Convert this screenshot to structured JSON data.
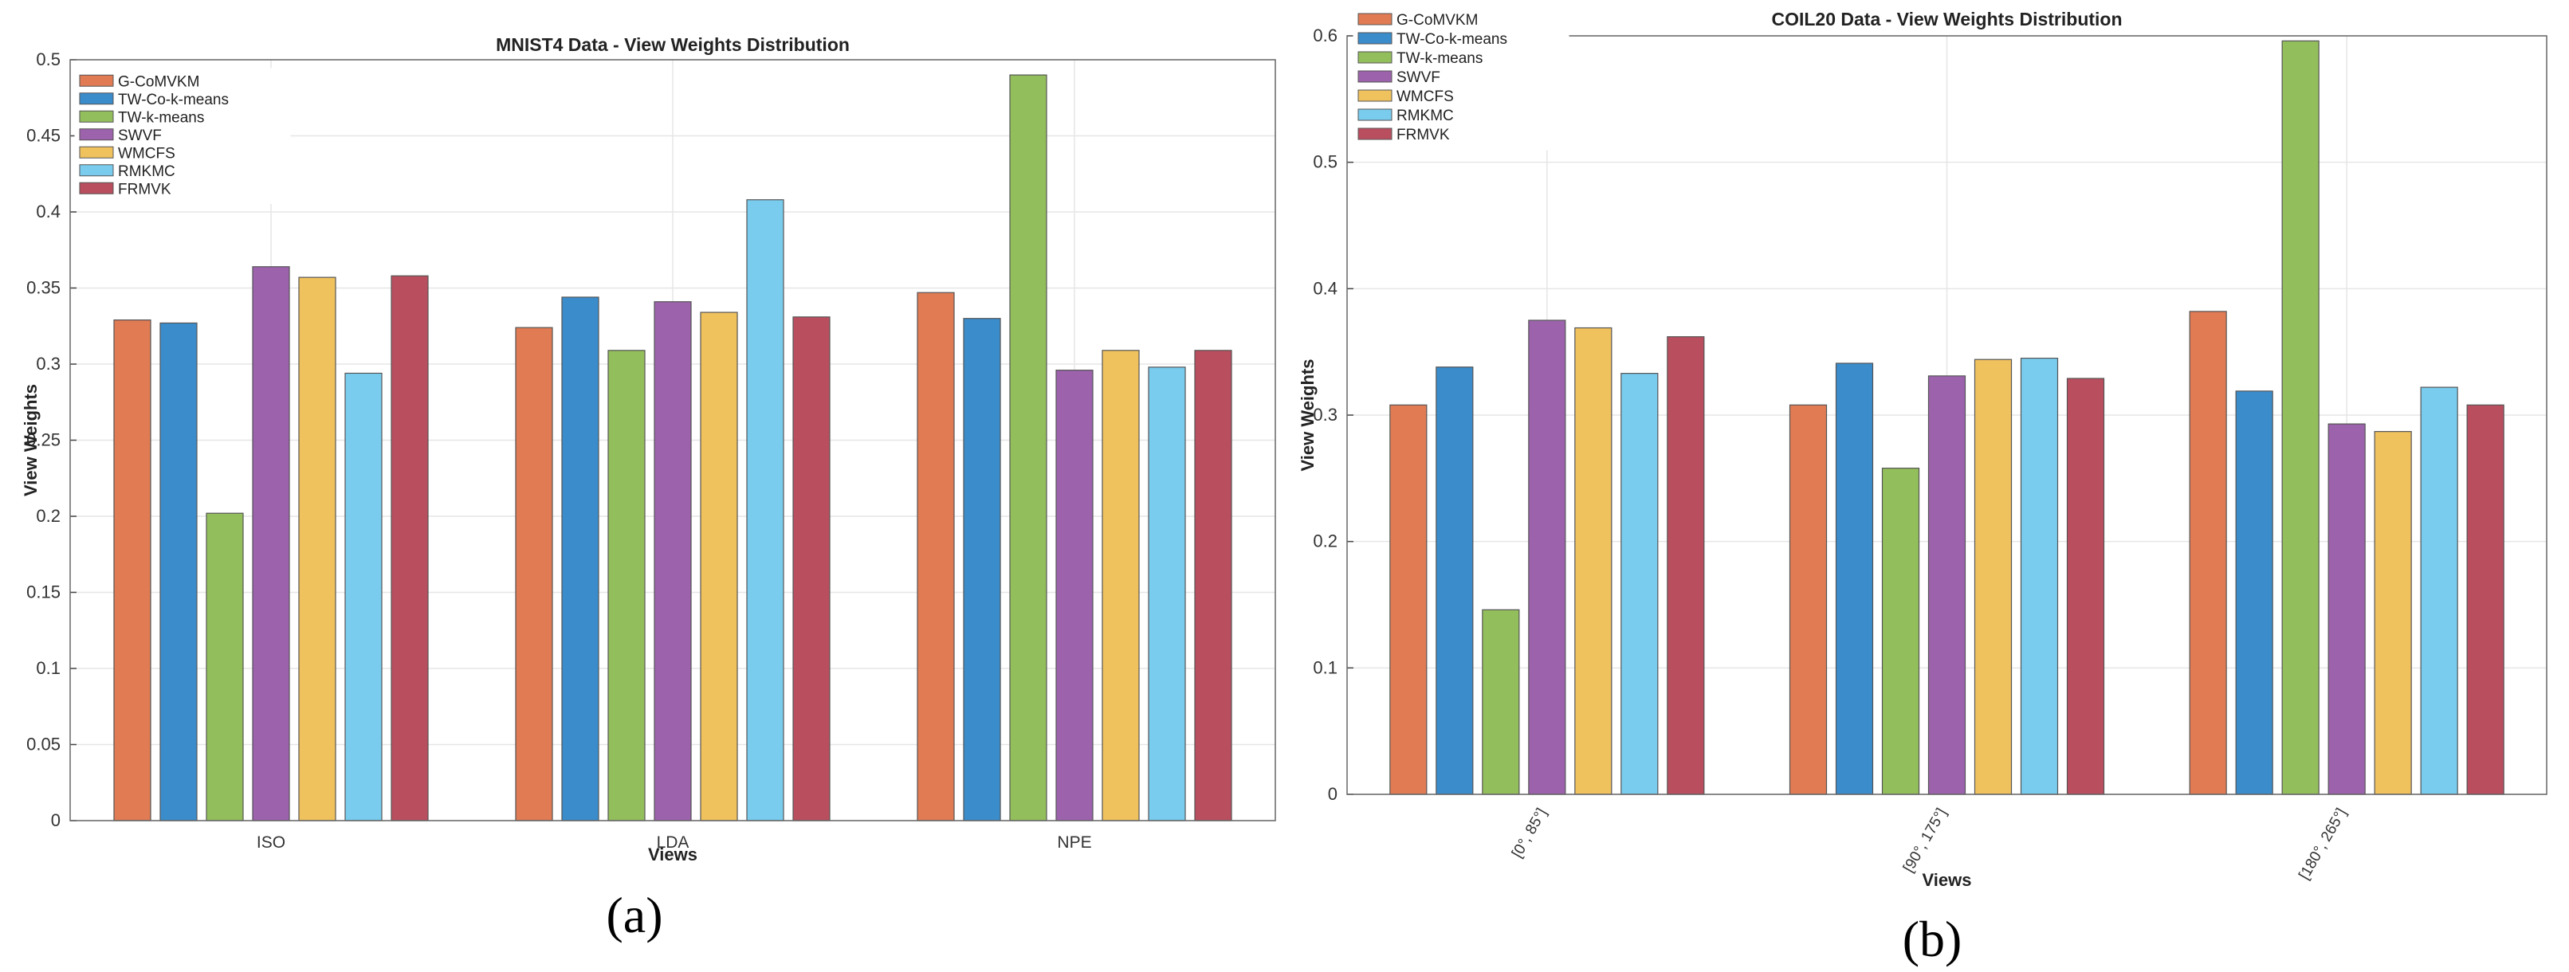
{
  "colors": {
    "G-CoMVKM": "#E07B54",
    "TW-Co-k-means": "#3A8CCB",
    "TW-k-means": "#93BE5C",
    "SWVF": "#9C62AC",
    "WMCFS": "#F0C25E",
    "RMKMC": "#79CCEE",
    "FRMVK": "#B94E5E"
  },
  "panel_labels": [
    "(a)",
    "(b)"
  ],
  "chart_data": [
    {
      "type": "bar",
      "title": "MNIST4 Data - View Weights Distribution",
      "xlabel": "Views",
      "ylabel": "View Weights",
      "categories": [
        "ISO",
        "LDA",
        "NPE"
      ],
      "ylim": [
        0,
        0.5
      ],
      "yticks": [
        "0",
        "0.05",
        "0.1",
        "0.15",
        "0.2",
        "0.25",
        "0.3",
        "0.35",
        "0.4",
        "0.45",
        "0.5"
      ],
      "grid": true,
      "legend_position": "top-left",
      "series": [
        {
          "name": "G-CoMVKM",
          "values": [
            0.329,
            0.324,
            0.347
          ]
        },
        {
          "name": "TW-Co-k-means",
          "values": [
            0.327,
            0.344,
            0.33
          ]
        },
        {
          "name": "TW-k-means",
          "values": [
            0.202,
            0.309,
            0.49
          ]
        },
        {
          "name": "SWVF",
          "values": [
            0.364,
            0.341,
            0.296
          ]
        },
        {
          "name": "WMCFS",
          "values": [
            0.357,
            0.334,
            0.309
          ]
        },
        {
          "name": "RMKMC",
          "values": [
            0.294,
            0.408,
            0.298
          ]
        },
        {
          "name": "FRMVK",
          "values": [
            0.358,
            0.331,
            0.309
          ]
        }
      ]
    },
    {
      "type": "bar",
      "title": "COIL20 Data - View Weights Distribution",
      "xlabel": "Views",
      "ylabel": "View Weights",
      "categories": [
        "[0°, 85°]",
        "[90°, 175°]",
        "[180°, 265°]"
      ],
      "ylim": [
        0,
        0.6
      ],
      "yticks": [
        "0",
        "0.1",
        "0.2",
        "0.3",
        "0.4",
        "0.5",
        "0.6"
      ],
      "grid": true,
      "legend_position": "top-left",
      "series": [
        {
          "name": "G-CoMVKM",
          "values": [
            0.308,
            0.308,
            0.382
          ]
        },
        {
          "name": "TW-Co-k-means",
          "values": [
            0.338,
            0.341,
            0.319
          ]
        },
        {
          "name": "TW-k-means",
          "values": [
            0.146,
            0.258,
            0.596
          ]
        },
        {
          "name": "SWVF",
          "values": [
            0.375,
            0.331,
            0.293
          ]
        },
        {
          "name": "WMCFS",
          "values": [
            0.369,
            0.344,
            0.287
          ]
        },
        {
          "name": "RMKMC",
          "values": [
            0.333,
            0.345,
            0.322
          ]
        },
        {
          "name": "FRMVK",
          "values": [
            0.362,
            0.329,
            0.308
          ]
        }
      ]
    }
  ]
}
